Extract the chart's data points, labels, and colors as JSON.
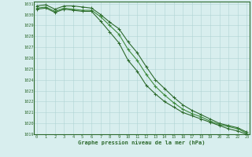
{
  "xlabel": "Graphe pression niveau de la mer (hPa)",
  "x": [
    0,
    1,
    2,
    3,
    4,
    5,
    6,
    7,
    8,
    9,
    10,
    11,
    12,
    13,
    14,
    15,
    16,
    17,
    18,
    19,
    20,
    21,
    22,
    23
  ],
  "line1": [
    1030.8,
    1030.9,
    1030.5,
    1030.8,
    1030.8,
    1030.7,
    1030.6,
    1030.0,
    1029.3,
    1028.7,
    1027.5,
    1026.5,
    1025.2,
    1024.0,
    1023.2,
    1022.4,
    1021.7,
    1021.2,
    1020.8,
    1020.4,
    1020.0,
    1019.8,
    1019.6,
    1019.2
  ],
  "line2": [
    1030.6,
    1030.7,
    1030.3,
    1030.6,
    1030.5,
    1030.4,
    1030.4,
    1029.8,
    1029.0,
    1028.2,
    1026.8,
    1025.8,
    1024.5,
    1023.4,
    1022.6,
    1021.9,
    1021.3,
    1020.9,
    1020.6,
    1020.2,
    1019.9,
    1019.7,
    1019.5,
    1019.1
  ],
  "line3": [
    1030.5,
    1030.6,
    1030.2,
    1030.5,
    1030.4,
    1030.3,
    1030.3,
    1029.4,
    1028.4,
    1027.4,
    1025.8,
    1024.8,
    1023.5,
    1022.7,
    1022.0,
    1021.5,
    1021.0,
    1020.7,
    1020.4,
    1020.1,
    1019.8,
    1019.5,
    1019.3,
    1019.0
  ],
  "line_color1": "#2d6a2d",
  "line_color2": "#3d8a3d",
  "line_color3": "#2d6a2d",
  "bg_color": "#d8eeee",
  "grid_color": "#b0d4d4",
  "text_color": "#2d6a2d",
  "axis_color": "#2d6a2d",
  "ylim_min": 1019,
  "ylim_max": 1031,
  "yticks": [
    1019,
    1020,
    1021,
    1022,
    1023,
    1024,
    1025,
    1026,
    1027,
    1028,
    1029,
    1030,
    1031
  ],
  "xticks": [
    0,
    1,
    2,
    3,
    4,
    5,
    6,
    7,
    8,
    9,
    10,
    11,
    12,
    13,
    14,
    15,
    16,
    17,
    18,
    19,
    20,
    21,
    22,
    23
  ],
  "marker": "+"
}
